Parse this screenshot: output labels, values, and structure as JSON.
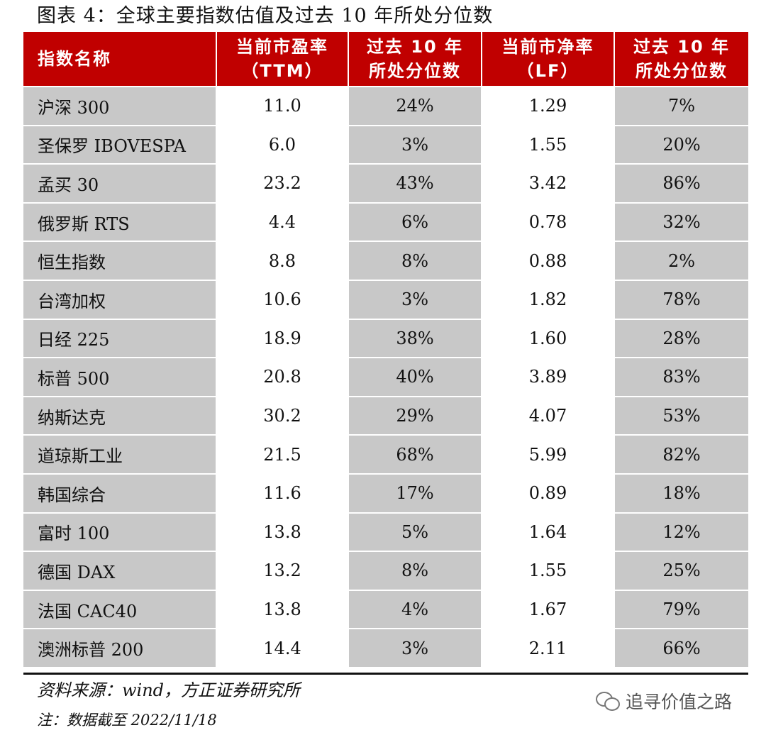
{
  "title": "图表 4：全球主要指数估值及过去 10 年所处分位数",
  "table": {
    "headers": [
      {
        "line1": "指数名称",
        "line2": ""
      },
      {
        "line1": "当前市盈率",
        "line2": "（TTM）"
      },
      {
        "line1": "过去 10 年",
        "line2": "所处分位数"
      },
      {
        "line1": "当前市净率",
        "line2": "（LF）"
      },
      {
        "line1": "过去 10 年",
        "line2": "所处分位数"
      }
    ],
    "rows": [
      [
        "沪深 300",
        "11.0",
        "24%",
        "1.29",
        "7%"
      ],
      [
        "圣保罗 IBOVESPA",
        "6.0",
        "3%",
        "1.55",
        "20%"
      ],
      [
        "孟买 30",
        "23.2",
        "43%",
        "3.42",
        "86%"
      ],
      [
        "俄罗斯 RTS",
        "4.4",
        "6%",
        "0.78",
        "32%"
      ],
      [
        "恒生指数",
        "8.8",
        "8%",
        "0.88",
        "2%"
      ],
      [
        "台湾加权",
        "10.6",
        "3%",
        "1.82",
        "78%"
      ],
      [
        "日经 225",
        "18.9",
        "38%",
        "1.60",
        "28%"
      ],
      [
        "标普 500",
        "20.8",
        "40%",
        "3.89",
        "83%"
      ],
      [
        "纳斯达克",
        "30.2",
        "29%",
        "4.07",
        "53%"
      ],
      [
        "道琼斯工业",
        "21.5",
        "68%",
        "5.99",
        "82%"
      ],
      [
        "韩国综合",
        "11.6",
        "17%",
        "0.89",
        "18%"
      ],
      [
        "富时 100",
        "13.8",
        "5%",
        "1.64",
        "12%"
      ],
      [
        "德国 DAX",
        "13.2",
        "8%",
        "1.55",
        "25%"
      ],
      [
        "法国 CAC40",
        "13.8",
        "4%",
        "1.67",
        "79%"
      ],
      [
        "澳洲标普 200",
        "14.4",
        "3%",
        "2.11",
        "66%"
      ]
    ]
  },
  "source": "资料来源：wind，方正证券研究所",
  "note": "注：数据截至 2022/11/18",
  "watermark": {
    "icon": "wechat-icon",
    "text": "追寻价值之路"
  },
  "colors": {
    "header_bg": "#c00000",
    "header_text": "#ffffff",
    "shaded_cell": "#c8c8c8"
  }
}
